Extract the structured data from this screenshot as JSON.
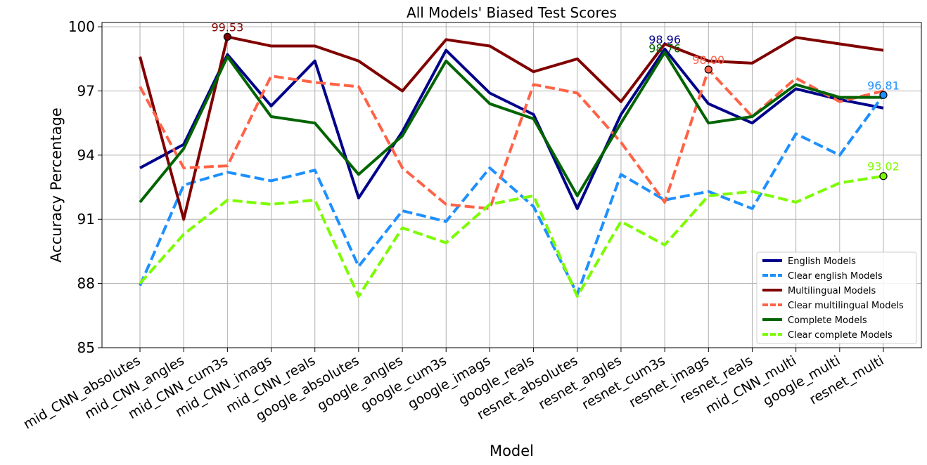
{
  "chart_data": {
    "type": "line",
    "title": "All Models' Biased Test Scores",
    "xlabel": "Model",
    "ylabel": "Accuracy Percentage",
    "ylim": [
      85,
      100.2
    ],
    "yticks": [
      85,
      88,
      91,
      94,
      97,
      100
    ],
    "ytick_labels": [
      "85",
      "88",
      "91",
      "94",
      "97",
      "100"
    ],
    "grid": true,
    "legend_position": "lower-right",
    "categories": [
      "mid_CNN_absolutes",
      "mid_CNN_angles",
      "mid_CNN_cum3s",
      "mid_CNN_imags",
      "mid_CNN_reals",
      "google_absolutes",
      "google_angles",
      "google_cum3s",
      "google_imags",
      "google_reals",
      "resnet_absolutes",
      "resnet_angles",
      "resnet_cum3s",
      "resnet_imags",
      "resnet_reals",
      "mid_CNN_multi",
      "google_multi",
      "resnet_multi"
    ],
    "series": [
      {
        "name": "English Models",
        "color": "#00008b",
        "dashed": false,
        "values": [
          93.4,
          94.5,
          98.7,
          96.3,
          98.4,
          92.0,
          95.1,
          98.9,
          96.9,
          95.9,
          91.5,
          95.9,
          98.96,
          96.4,
          95.5,
          97.1,
          96.6,
          96.2
        ]
      },
      {
        "name": "Clear english Models",
        "color": "#1e90ff",
        "dashed": true,
        "values": [
          87.9,
          92.6,
          93.2,
          92.8,
          93.3,
          88.8,
          91.4,
          90.9,
          93.4,
          91.6,
          87.5,
          93.1,
          91.9,
          92.3,
          91.5,
          95.0,
          94.0,
          96.81
        ]
      },
      {
        "name": "Multilingual Models",
        "color": "#800000",
        "dashed": false,
        "values": [
          98.6,
          91.0,
          99.53,
          99.1,
          99.1,
          98.4,
          97.0,
          99.4,
          99.1,
          97.9,
          98.5,
          96.5,
          99.2,
          98.4,
          98.3,
          99.5,
          99.2,
          98.9
        ]
      },
      {
        "name": "Clear multilingual Models",
        "color": "#ff6347",
        "dashed": true,
        "values": [
          97.2,
          93.4,
          93.5,
          97.7,
          97.4,
          97.2,
          93.4,
          91.7,
          91.5,
          97.3,
          96.9,
          94.6,
          91.8,
          98.0,
          95.8,
          97.6,
          96.5,
          97.0
        ]
      },
      {
        "name": "Complete Models",
        "color": "#006400",
        "dashed": false,
        "values": [
          91.8,
          94.3,
          98.6,
          95.8,
          95.5,
          93.1,
          94.9,
          98.4,
          96.4,
          95.7,
          92.1,
          95.5,
          98.8,
          95.5,
          95.8,
          97.3,
          96.7,
          96.7
        ]
      },
      {
        "name": "Clear complete Models",
        "color": "#7cfc00",
        "dashed": true,
        "values": [
          88.0,
          90.3,
          91.9,
          91.7,
          91.9,
          87.4,
          90.6,
          89.9,
          91.7,
          92.1,
          87.4,
          90.9,
          89.8,
          92.1,
          92.3,
          91.8,
          92.7,
          93.02
        ]
      }
    ],
    "annotations": [
      {
        "text": "99.53",
        "series": 2,
        "index": 2,
        "color": "#800000",
        "marker": true
      },
      {
        "text": "98.96",
        "series": 0,
        "index": 12,
        "color": "#00008b",
        "marker": false
      },
      {
        "text": "98.76",
        "series": 4,
        "index": 12,
        "color": "#006400",
        "marker": false
      },
      {
        "text": "98.00",
        "series": 3,
        "index": 13,
        "color": "#ff6347",
        "marker": true
      },
      {
        "text": "96.81",
        "series": 1,
        "index": 17,
        "color": "#1e90ff",
        "marker": true
      },
      {
        "text": "93.02",
        "series": 5,
        "index": 17,
        "color": "#7cfc00",
        "marker": true
      }
    ]
  }
}
